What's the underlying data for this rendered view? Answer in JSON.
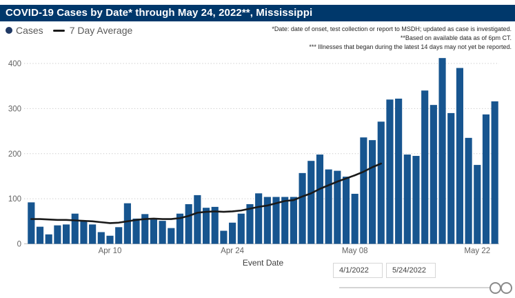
{
  "header": {
    "title": "COVID-19 Cases by Date* through May 24, 2022**, Mississippi",
    "bg_color": "#00386B"
  },
  "legend": {
    "cases_label": "Cases",
    "avg_label": "7 Day Average",
    "dot_color": "#1F3864",
    "line_color": "#1a1a1a"
  },
  "annotations": {
    "line1": "*Date: date of onset, test collection or report to MSDH; updated as case is investigated.",
    "line2": "**Based on available data as of 6pm CT.",
    "line3": "*** Illnesses that began during the latest 14 days may not yet be reported."
  },
  "filters": {
    "start_date": "4/1/2022",
    "end_date": "5/24/2022"
  },
  "chart_data": {
    "type": "bar",
    "title": "COVID-19 Cases by Date through May 24, 2022, Mississippi",
    "xlabel": "Event Date",
    "ylabel": "",
    "ylim": [
      0,
      450
    ],
    "yticks": [
      0,
      100,
      200,
      300,
      400
    ],
    "grid": "dotted-horizontal",
    "legend_position": "top-left",
    "bar_color": "#17558F",
    "avg_line_color": "#1a1a1a",
    "categories": [
      "Apr 1",
      "Apr 2",
      "Apr 3",
      "Apr 4",
      "Apr 5",
      "Apr 6",
      "Apr 7",
      "Apr 8",
      "Apr 9",
      "Apr 10",
      "Apr 11",
      "Apr 12",
      "Apr 13",
      "Apr 14",
      "Apr 15",
      "Apr 16",
      "Apr 17",
      "Apr 18",
      "Apr 19",
      "Apr 20",
      "Apr 21",
      "Apr 22",
      "Apr 23",
      "Apr 24",
      "Apr 25",
      "Apr 26",
      "Apr 27",
      "Apr 28",
      "Apr 29",
      "Apr 30",
      "May 1",
      "May 2",
      "May 3",
      "May 4",
      "May 5",
      "May 6",
      "May 7",
      "May 8",
      "May 9",
      "May 10",
      "May 11",
      "May 12",
      "May 13",
      "May 14",
      "May 15",
      "May 16",
      "May 17",
      "May 18",
      "May 19",
      "May 20",
      "May 21",
      "May 22",
      "May 23",
      "May 24"
    ],
    "values": [
      92,
      38,
      21,
      41,
      43,
      67,
      52,
      43,
      26,
      18,
      37,
      90,
      56,
      66,
      54,
      51,
      35,
      67,
      88,
      108,
      80,
      82,
      29,
      47,
      67,
      88,
      112,
      104,
      104,
      104,
      104,
      157,
      184,
      198,
      165,
      162,
      149,
      111,
      236,
      230,
      271,
      320,
      322,
      198,
      195,
      340,
      308,
      412,
      290,
      390,
      235,
      175,
      287,
      316
    ],
    "series": [
      {
        "name": "Cases",
        "type": "bar",
        "values": [
          92,
          38,
          21,
          41,
          43,
          67,
          52,
          43,
          26,
          18,
          37,
          90,
          56,
          66,
          54,
          51,
          35,
          67,
          88,
          108,
          80,
          82,
          29,
          47,
          67,
          88,
          112,
          104,
          104,
          104,
          104,
          157,
          184,
          198,
          165,
          162,
          149,
          111,
          236,
          230,
          271,
          320,
          322,
          198,
          195,
          340,
          308,
          412,
          290,
          390,
          235,
          175,
          287,
          316
        ]
      },
      {
        "name": "7 Day Average",
        "type": "line",
        "start_index": 0,
        "values": [
          55,
          55,
          54,
          53,
          53,
          52,
          51,
          50,
          48,
          46,
          47,
          50,
          53,
          55,
          56,
          55,
          55,
          57,
          62,
          69,
          71,
          72,
          71,
          72,
          74,
          78,
          82,
          85,
          90,
          95,
          97,
          105,
          112,
          122,
          130,
          138,
          145,
          152,
          160,
          170,
          178
        ]
      }
    ],
    "xticks": [
      {
        "label": "Apr 10",
        "index": 9
      },
      {
        "label": "Apr 24",
        "index": 23
      },
      {
        "label": "May 08",
        "index": 37
      },
      {
        "label": "May 22",
        "index": 51
      }
    ]
  }
}
